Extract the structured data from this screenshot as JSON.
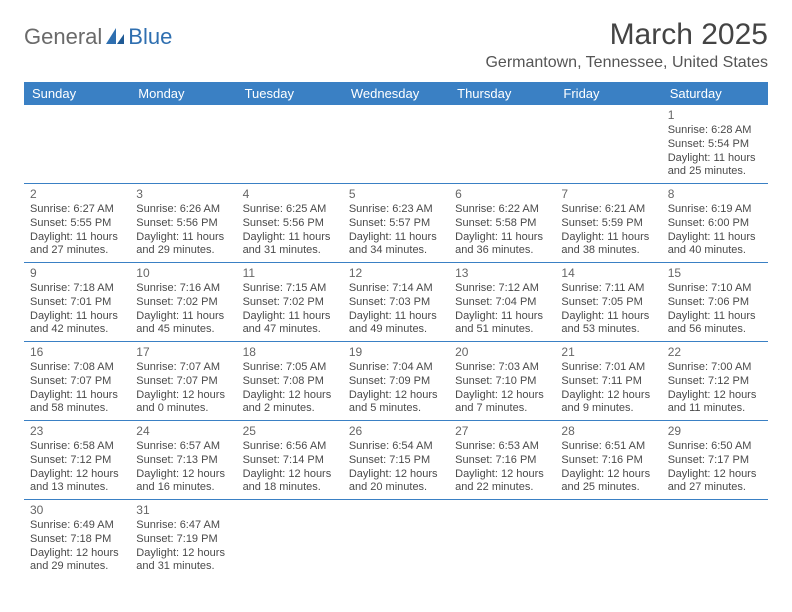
{
  "brand": {
    "part1": "General",
    "part2": "Blue"
  },
  "title": {
    "month": "March 2025",
    "location": "Germantown, Tennessee, United States"
  },
  "colors": {
    "header_bg": "#3a80c4",
    "header_fg": "#ffffff",
    "border": "#3a80c4",
    "text": "#4a4a4a",
    "accent": "#2f6fb0"
  },
  "day_headers": [
    "Sunday",
    "Monday",
    "Tuesday",
    "Wednesday",
    "Thursday",
    "Friday",
    "Saturday"
  ],
  "weeks": [
    [
      null,
      null,
      null,
      null,
      null,
      null,
      {
        "n": "1",
        "sunrise": "6:28 AM",
        "sunset": "5:54 PM",
        "daylight": "11 hours and 25 minutes."
      }
    ],
    [
      {
        "n": "2",
        "sunrise": "6:27 AM",
        "sunset": "5:55 PM",
        "daylight": "11 hours and 27 minutes."
      },
      {
        "n": "3",
        "sunrise": "6:26 AM",
        "sunset": "5:56 PM",
        "daylight": "11 hours and 29 minutes."
      },
      {
        "n": "4",
        "sunrise": "6:25 AM",
        "sunset": "5:56 PM",
        "daylight": "11 hours and 31 minutes."
      },
      {
        "n": "5",
        "sunrise": "6:23 AM",
        "sunset": "5:57 PM",
        "daylight": "11 hours and 34 minutes."
      },
      {
        "n": "6",
        "sunrise": "6:22 AM",
        "sunset": "5:58 PM",
        "daylight": "11 hours and 36 minutes."
      },
      {
        "n": "7",
        "sunrise": "6:21 AM",
        "sunset": "5:59 PM",
        "daylight": "11 hours and 38 minutes."
      },
      {
        "n": "8",
        "sunrise": "6:19 AM",
        "sunset": "6:00 PM",
        "daylight": "11 hours and 40 minutes."
      }
    ],
    [
      {
        "n": "9",
        "sunrise": "7:18 AM",
        "sunset": "7:01 PM",
        "daylight": "11 hours and 42 minutes."
      },
      {
        "n": "10",
        "sunrise": "7:16 AM",
        "sunset": "7:02 PM",
        "daylight": "11 hours and 45 minutes."
      },
      {
        "n": "11",
        "sunrise": "7:15 AM",
        "sunset": "7:02 PM",
        "daylight": "11 hours and 47 minutes."
      },
      {
        "n": "12",
        "sunrise": "7:14 AM",
        "sunset": "7:03 PM",
        "daylight": "11 hours and 49 minutes."
      },
      {
        "n": "13",
        "sunrise": "7:12 AM",
        "sunset": "7:04 PM",
        "daylight": "11 hours and 51 minutes."
      },
      {
        "n": "14",
        "sunrise": "7:11 AM",
        "sunset": "7:05 PM",
        "daylight": "11 hours and 53 minutes."
      },
      {
        "n": "15",
        "sunrise": "7:10 AM",
        "sunset": "7:06 PM",
        "daylight": "11 hours and 56 minutes."
      }
    ],
    [
      {
        "n": "16",
        "sunrise": "7:08 AM",
        "sunset": "7:07 PM",
        "daylight": "11 hours and 58 minutes."
      },
      {
        "n": "17",
        "sunrise": "7:07 AM",
        "sunset": "7:07 PM",
        "daylight": "12 hours and 0 minutes."
      },
      {
        "n": "18",
        "sunrise": "7:05 AM",
        "sunset": "7:08 PM",
        "daylight": "12 hours and 2 minutes."
      },
      {
        "n": "19",
        "sunrise": "7:04 AM",
        "sunset": "7:09 PM",
        "daylight": "12 hours and 5 minutes."
      },
      {
        "n": "20",
        "sunrise": "7:03 AM",
        "sunset": "7:10 PM",
        "daylight": "12 hours and 7 minutes."
      },
      {
        "n": "21",
        "sunrise": "7:01 AM",
        "sunset": "7:11 PM",
        "daylight": "12 hours and 9 minutes."
      },
      {
        "n": "22",
        "sunrise": "7:00 AM",
        "sunset": "7:12 PM",
        "daylight": "12 hours and 11 minutes."
      }
    ],
    [
      {
        "n": "23",
        "sunrise": "6:58 AM",
        "sunset": "7:12 PM",
        "daylight": "12 hours and 13 minutes."
      },
      {
        "n": "24",
        "sunrise": "6:57 AM",
        "sunset": "7:13 PM",
        "daylight": "12 hours and 16 minutes."
      },
      {
        "n": "25",
        "sunrise": "6:56 AM",
        "sunset": "7:14 PM",
        "daylight": "12 hours and 18 minutes."
      },
      {
        "n": "26",
        "sunrise": "6:54 AM",
        "sunset": "7:15 PM",
        "daylight": "12 hours and 20 minutes."
      },
      {
        "n": "27",
        "sunrise": "6:53 AM",
        "sunset": "7:16 PM",
        "daylight": "12 hours and 22 minutes."
      },
      {
        "n": "28",
        "sunrise": "6:51 AM",
        "sunset": "7:16 PM",
        "daylight": "12 hours and 25 minutes."
      },
      {
        "n": "29",
        "sunrise": "6:50 AM",
        "sunset": "7:17 PM",
        "daylight": "12 hours and 27 minutes."
      }
    ],
    [
      {
        "n": "30",
        "sunrise": "6:49 AM",
        "sunset": "7:18 PM",
        "daylight": "12 hours and 29 minutes."
      },
      {
        "n": "31",
        "sunrise": "6:47 AM",
        "sunset": "7:19 PM",
        "daylight": "12 hours and 31 minutes."
      },
      null,
      null,
      null,
      null,
      null
    ]
  ],
  "labels": {
    "sunrise_prefix": "Sunrise: ",
    "sunset_prefix": "Sunset: ",
    "daylight_prefix": "Daylight: "
  }
}
